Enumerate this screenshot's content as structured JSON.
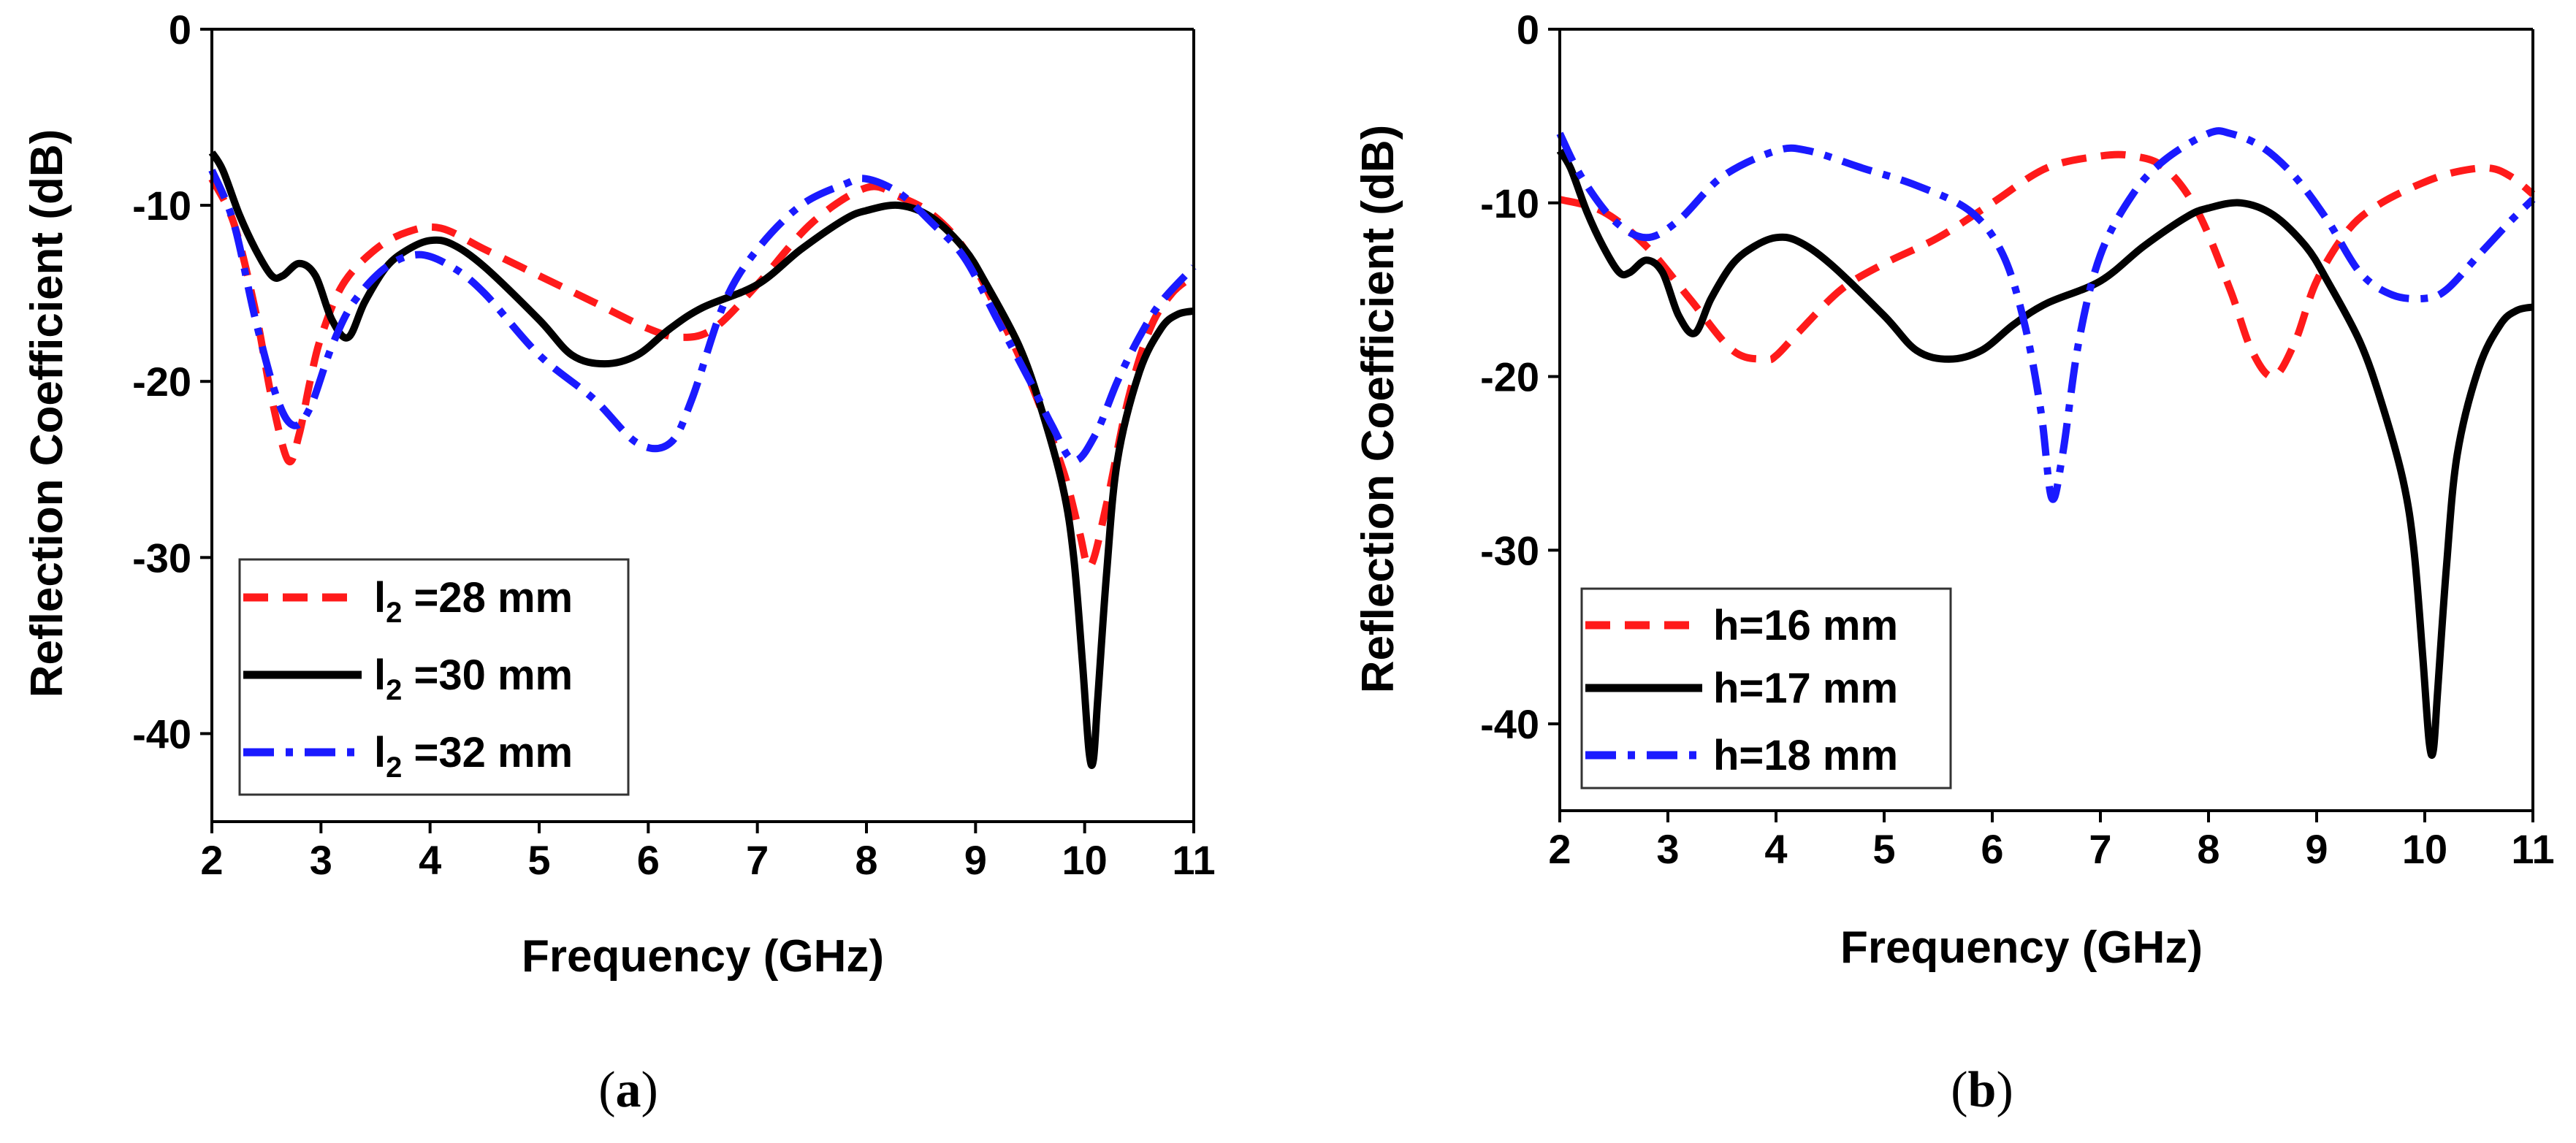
{
  "chart_data": [
    {
      "type": "line",
      "panel_label": "(a)",
      "panel_letter": "a",
      "xlabel": "Frequency (GHz)",
      "ylabel": "Reflection Coefficient (dB)",
      "xlim": [
        2,
        11
      ],
      "ylim": [
        -45,
        0
      ],
      "xticks": [
        2,
        3,
        4,
        5,
        6,
        7,
        8,
        9,
        10,
        11
      ],
      "yticks": [
        0,
        -10,
        -20,
        -30,
        -40
      ],
      "legend_position": "bottom-left",
      "series": [
        {
          "name": "l2 =28 mm",
          "legend_base": "l",
          "legend_sub": "2",
          "legend_rest": " =28 mm",
          "color": "#ff1a1a",
          "dash": "dash",
          "x": [
            2.0,
            2.2,
            2.4,
            2.55,
            2.7,
            2.8,
            2.9,
            3.0,
            3.2,
            3.5,
            3.8,
            4.1,
            4.5,
            5.0,
            5.5,
            6.0,
            6.3,
            6.6,
            7.0,
            7.5,
            8.0,
            8.3,
            8.6,
            8.9,
            9.2,
            9.5,
            9.8,
            9.95,
            10.05,
            10.2,
            10.4,
            10.6,
            10.8,
            11.0
          ],
          "y": [
            -8.5,
            -11,
            -16,
            -21,
            -24.5,
            -23,
            -20,
            -17.5,
            -14.5,
            -12.5,
            -11.5,
            -11.3,
            -12.5,
            -14,
            -15.5,
            -17,
            -17.5,
            -17,
            -14.5,
            -11,
            -9,
            -9.5,
            -10.5,
            -12.5,
            -16,
            -20,
            -25,
            -28.5,
            -30.5,
            -27,
            -21,
            -17,
            -15,
            -14
          ]
        },
        {
          "name": "l2 =30 mm",
          "legend_base": "l",
          "legend_sub": "2",
          "legend_rest": " =30 mm",
          "color": "#000000",
          "dash": "solid",
          "x": [
            2.0,
            2.1,
            2.25,
            2.4,
            2.55,
            2.65,
            2.8,
            2.95,
            3.1,
            3.25,
            3.4,
            3.6,
            3.8,
            4.0,
            4.2,
            4.5,
            5.0,
            5.3,
            5.6,
            5.9,
            6.2,
            6.5,
            7.0,
            7.4,
            7.8,
            8.0,
            8.3,
            8.6,
            8.9,
            9.1,
            9.4,
            9.6,
            9.8,
            9.9,
            9.98,
            10.04,
            10.08,
            10.12,
            10.2,
            10.3,
            10.5,
            10.7,
            10.85,
            11.0
          ],
          "y": [
            -7,
            -8,
            -10.5,
            -12.5,
            -14,
            -14,
            -13.3,
            -14,
            -16.5,
            -17.5,
            -15.5,
            -13.5,
            -12.5,
            -12,
            -12.2,
            -13.5,
            -16.5,
            -18.5,
            -19,
            -18.5,
            -17,
            -15.8,
            -14.5,
            -12.5,
            -10.8,
            -10.3,
            -10,
            -10.7,
            -12.5,
            -14.5,
            -18,
            -21.5,
            -26,
            -30,
            -36,
            -41,
            -41.5,
            -38,
            -31,
            -24.5,
            -19.5,
            -17,
            -16.2,
            -16
          ]
        },
        {
          "name": "l2 =32 mm",
          "legend_base": "l",
          "legend_sub": "2",
          "legend_rest": " =32 mm",
          "color": "#1a1aff",
          "dash": "dashdot",
          "x": [
            2.0,
            2.2,
            2.4,
            2.6,
            2.75,
            2.9,
            3.1,
            3.3,
            3.6,
            3.9,
            4.2,
            4.5,
            5.0,
            5.5,
            5.9,
            6.2,
            6.4,
            6.7,
            7.0,
            7.4,
            7.8,
            8.0,
            8.3,
            8.6,
            8.9,
            9.2,
            9.5,
            9.7,
            9.9,
            10.1,
            10.3,
            10.5,
            10.7,
            11.0
          ],
          "y": [
            -8,
            -11,
            -16.5,
            -21,
            -22.5,
            -21.5,
            -18,
            -15.5,
            -13.5,
            -12.8,
            -13.5,
            -15,
            -18.5,
            -21,
            -23.5,
            -23.5,
            -21,
            -15.5,
            -12.5,
            -10,
            -8.8,
            -8.5,
            -9.3,
            -11,
            -13,
            -16.5,
            -20,
            -22.5,
            -24.5,
            -23,
            -20,
            -17.5,
            -15.5,
            -13.5
          ]
        }
      ]
    },
    {
      "type": "line",
      "panel_label": "(b)",
      "panel_letter": "b",
      "xlabel": "Frequency (GHz)",
      "ylabel": "Reflection Coefficient (dB)",
      "xlim": [
        2,
        11
      ],
      "ylim": [
        -45,
        0
      ],
      "xticks": [
        2,
        3,
        4,
        5,
        6,
        7,
        8,
        9,
        10,
        11
      ],
      "yticks": [
        0,
        -10,
        -20,
        -30,
        -40
      ],
      "legend_position": "bottom-left",
      "series": [
        {
          "name": "h=16 mm",
          "legend_base": "h=16 mm",
          "legend_sub": "",
          "legend_rest": "",
          "color": "#ff1a1a",
          "dash": "dash",
          "x": [
            2.0,
            2.4,
            2.8,
            3.2,
            3.6,
            3.9,
            4.0,
            4.2,
            4.6,
            5.0,
            5.5,
            6.0,
            6.5,
            7.0,
            7.3,
            7.6,
            7.9,
            8.2,
            8.4,
            8.6,
            8.8,
            9.0,
            9.3,
            9.6,
            10.0,
            10.3,
            10.6,
            10.8,
            11.0
          ],
          "y": [
            -9.8,
            -10.5,
            -12.5,
            -15.5,
            -18.5,
            -19,
            -18.8,
            -17.5,
            -15,
            -13.5,
            -12,
            -10,
            -8,
            -7.3,
            -7.3,
            -8,
            -10.5,
            -15,
            -18.5,
            -20,
            -18,
            -14.5,
            -11.5,
            -10,
            -8.8,
            -8.2,
            -8,
            -8.5,
            -9.5
          ]
        },
        {
          "name": "h=17 mm",
          "legend_base": "h=17 mm",
          "legend_sub": "",
          "legend_rest": "",
          "color": "#000000",
          "dash": "solid",
          "x": [
            2.0,
            2.1,
            2.25,
            2.4,
            2.55,
            2.65,
            2.8,
            2.95,
            3.1,
            3.25,
            3.4,
            3.6,
            3.8,
            4.0,
            4.2,
            4.5,
            5.0,
            5.3,
            5.6,
            5.9,
            6.2,
            6.5,
            7.0,
            7.4,
            7.8,
            8.0,
            8.3,
            8.6,
            8.9,
            9.1,
            9.4,
            9.6,
            9.8,
            9.9,
            9.98,
            10.04,
            10.08,
            10.12,
            10.2,
            10.3,
            10.5,
            10.7,
            10.85,
            11.0
          ],
          "y": [
            -7,
            -8,
            -10.5,
            -12.5,
            -14,
            -14,
            -13.3,
            -14,
            -16.5,
            -17.5,
            -15.5,
            -13.5,
            -12.5,
            -12,
            -12.2,
            -13.5,
            -16.5,
            -18.5,
            -19,
            -18.5,
            -17,
            -15.8,
            -14.5,
            -12.5,
            -10.8,
            -10.3,
            -10,
            -10.7,
            -12.5,
            -14.5,
            -18,
            -21.5,
            -26,
            -30,
            -36,
            -41,
            -41.5,
            -38,
            -31,
            -24.5,
            -19.5,
            -17,
            -16.2,
            -16
          ]
        },
        {
          "name": "h=18 mm",
          "legend_base": "h=18 mm",
          "legend_sub": "",
          "legend_rest": "",
          "color": "#1a1aff",
          "dash": "dashdot",
          "x": [
            2.0,
            2.2,
            2.5,
            2.8,
            3.1,
            3.5,
            4.0,
            4.3,
            4.8,
            5.3,
            5.8,
            6.1,
            6.3,
            6.45,
            6.55,
            6.65,
            6.8,
            7.0,
            7.3,
            7.6,
            8.0,
            8.2,
            8.5,
            8.8,
            9.1,
            9.4,
            9.7,
            10.0,
            10.2,
            10.5,
            10.8,
            11.0
          ],
          "y": [
            -6,
            -8.5,
            -11,
            -12,
            -11,
            -8.5,
            -7,
            -7,
            -8,
            -9,
            -10.5,
            -13,
            -17,
            -22,
            -27,
            -24.5,
            -18,
            -13,
            -9.5,
            -7.5,
            -6,
            -6,
            -6.8,
            -8.5,
            -11,
            -14,
            -15.3,
            -15.5,
            -15,
            -13,
            -11,
            -9.8
          ]
        }
      ]
    }
  ]
}
